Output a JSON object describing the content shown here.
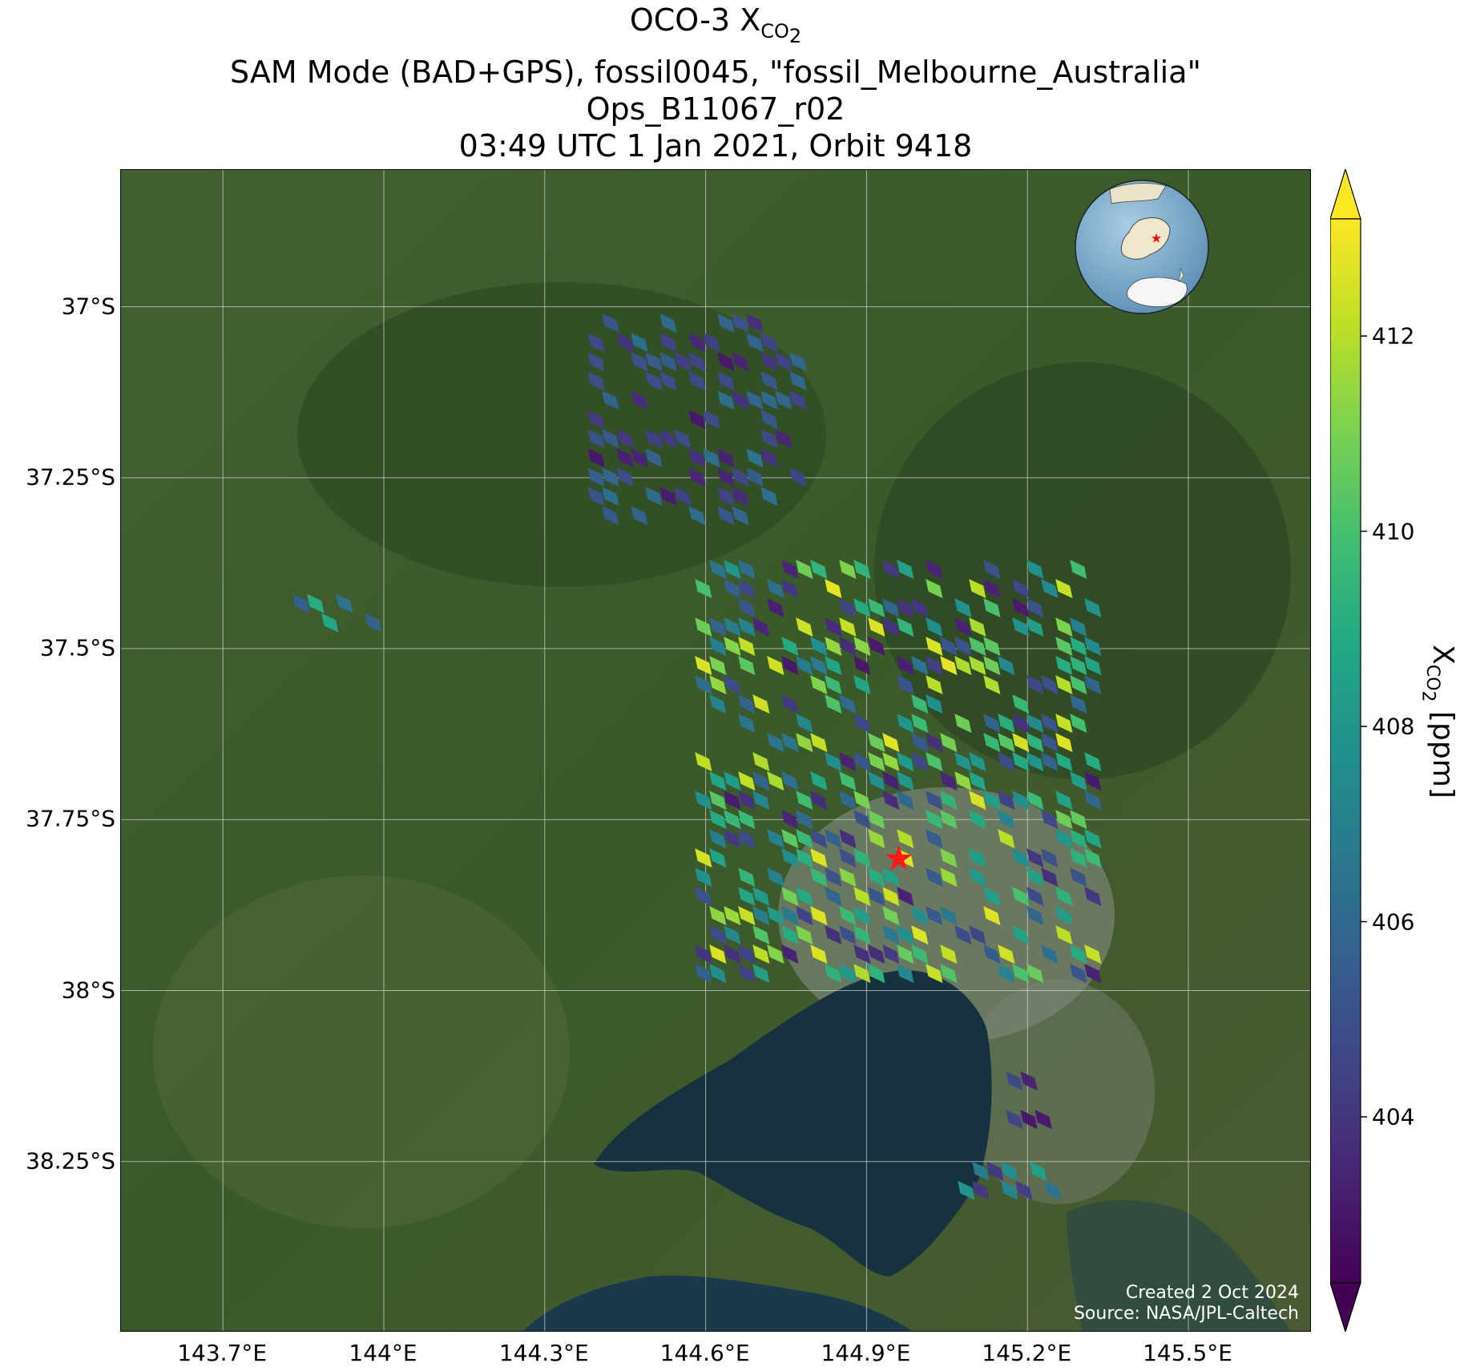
{
  "title": {
    "line1_prefix": "OCO-3 X",
    "line1_sub": "CO",
    "line1_subsub": "2",
    "line2": "SAM Mode (BAD+GPS), fossil0045, \"fossil_Melbourne_Australia\"",
    "line3": "Ops_B11067_r02",
    "line4": "03:49 UTC 1 Jan 2021, Orbit 9418"
  },
  "map": {
    "lon_range": [
      143.51,
      145.73
    ],
    "lat_range": [
      -36.8,
      -38.5
    ],
    "x_ticks": [
      "143.7°E",
      "144°E",
      "144.3°E",
      "144.6°E",
      "144.9°E",
      "145.2°E",
      "145.5°E"
    ],
    "x_tick_values": [
      143.7,
      144.0,
      144.3,
      144.6,
      144.9,
      145.2,
      145.5
    ],
    "y_ticks": [
      "37°S",
      "37.25°S",
      "37.5°S",
      "37.75°S",
      "38°S",
      "38.25°S"
    ],
    "y_tick_values": [
      -37.0,
      -37.25,
      -37.5,
      -37.75,
      -38.0,
      -38.25
    ],
    "target_marker": {
      "lon": 144.96,
      "lat": -37.81,
      "color": "#ff1a1a",
      "icon": "star-icon"
    },
    "grid": true,
    "basemap": "satellite imagery (Port Phillip Bay, Victoria)",
    "inset_globe": {
      "icon": "globe-icon",
      "region": "Australia",
      "marker": "star-icon"
    },
    "colors": {
      "land": "#3f5e2e",
      "water": "#17323f",
      "urban": "#8a8f86",
      "grid": "#d9d9d9"
    }
  },
  "credits": {
    "created": "Created 2 Oct 2024",
    "source": "Source: NASA/JPL-Caltech"
  },
  "colorbar": {
    "colormap": "viridis",
    "range": [
      402.3,
      413.2
    ],
    "ticks": [
      404,
      406,
      408,
      410,
      412
    ],
    "tick_labels": [
      "404",
      "406",
      "408",
      "410",
      "412"
    ],
    "extend": "both",
    "label_prefix": "X",
    "label_sub": "CO",
    "label_subsub": "2",
    "label_suffix": " [ppm]"
  },
  "chart_data": {
    "type": "heatmap",
    "variable": "XCO2",
    "units": "ppm",
    "clusters": [
      {
        "name": "north cluster",
        "lon_range": [
          144.38,
          144.77
        ],
        "lat_range": [
          -37.01,
          -37.33
        ],
        "xco2_range": [
          403,
          406.5
        ]
      },
      {
        "name": "west cluster",
        "lon_range": [
          143.83,
          143.99
        ],
        "lat_range": [
          -37.42,
          -37.48
        ],
        "xco2_range": [
          405,
          409.5
        ]
      },
      {
        "name": "Melbourne main swath",
        "lon_range": [
          144.58,
          145.32
        ],
        "lat_range": [
          -37.37,
          -37.98
        ],
        "xco2_range": [
          403,
          413
        ]
      },
      {
        "name": "south-east cluster",
        "lon_range": [
          145.16,
          145.25
        ],
        "lat_range": [
          -38.09,
          -38.19
        ],
        "xco2_range": [
          403,
          405
        ]
      },
      {
        "name": "south cluster",
        "lon_range": [
          145.07,
          145.25
        ],
        "lat_range": [
          -38.25,
          -38.31
        ],
        "xco2_range": [
          404,
          409
        ]
      }
    ]
  }
}
